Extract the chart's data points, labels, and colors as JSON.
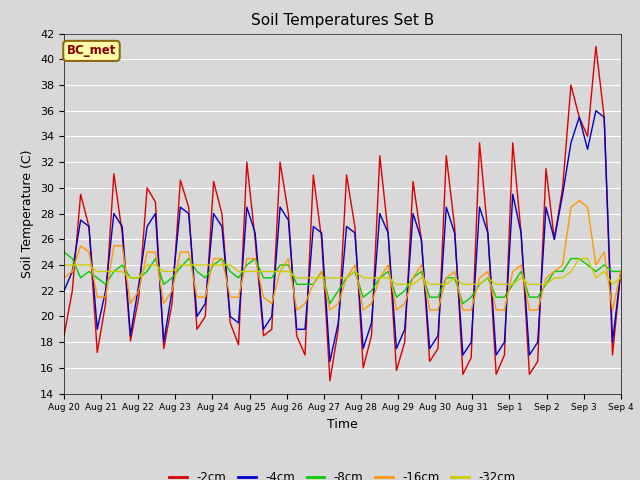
{
  "title": "Soil Temperatures Set B",
  "xlabel": "Time",
  "ylabel": "Soil Temperature (C)",
  "ylim": [
    14,
    42
  ],
  "yticks": [
    14,
    16,
    18,
    20,
    22,
    24,
    26,
    28,
    30,
    32,
    34,
    36,
    38,
    40,
    42
  ],
  "annotation": "BC_met",
  "colors": {
    "-2cm": "#dd0000",
    "-4cm": "#0000cc",
    "-8cm": "#00cc00",
    "-16cm": "#ff9900",
    "-32cm": "#cccc00"
  },
  "legend_order": [
    "-2cm",
    "-4cm",
    "-8cm",
    "-16cm",
    "-32cm"
  ],
  "background_color": "#d8d8d8",
  "x_labels": [
    "Aug 20",
    "Aug 21",
    "Aug 22",
    "Aug 23",
    "Aug 24",
    "Aug 25",
    "Aug 26",
    "Aug 27",
    "Aug 28",
    "Aug 29",
    "Aug 30",
    "Aug 31",
    "Sep 1",
    "Sep 2",
    "Sep 3",
    "Sep 4"
  ],
  "t_2cm": [
    18.5,
    22.0,
    29.5,
    27.0,
    17.2,
    21.0,
    31.1,
    26.5,
    18.1,
    21.5,
    30.0,
    28.9,
    17.5,
    21.0,
    30.6,
    28.5,
    19.0,
    20.0,
    30.5,
    28.0,
    19.5,
    17.8,
    32.0,
    26.0,
    18.5,
    19.0,
    32.0,
    28.0,
    18.5,
    17.0,
    31.0,
    26.0,
    15.0,
    19.0,
    31.0,
    27.0,
    16.0,
    18.5,
    32.5,
    26.5,
    15.8,
    18.0,
    30.5,
    26.0,
    16.5,
    17.5,
    32.5,
    27.0,
    15.5,
    16.8,
    33.5,
    26.5,
    15.5,
    17.0,
    33.5,
    26.5,
    15.5,
    16.5,
    31.5,
    26.0,
    30.0,
    38.0,
    35.5,
    34.0,
    41.0,
    35.5,
    17.0,
    23.5
  ],
  "t_4cm": [
    22.0,
    23.5,
    27.5,
    27.0,
    19.0,
    22.0,
    28.0,
    27.0,
    18.5,
    22.5,
    27.0,
    28.0,
    18.0,
    22.0,
    28.5,
    28.0,
    20.0,
    21.0,
    28.0,
    27.0,
    20.0,
    19.5,
    28.5,
    26.5,
    19.0,
    20.0,
    28.5,
    27.5,
    19.0,
    19.0,
    27.0,
    26.5,
    16.5,
    19.5,
    27.0,
    26.5,
    17.5,
    19.5,
    28.0,
    26.5,
    17.5,
    19.0,
    28.0,
    26.0,
    17.5,
    18.5,
    28.5,
    26.5,
    17.0,
    18.0,
    28.5,
    26.5,
    17.0,
    18.0,
    29.5,
    26.5,
    17.0,
    18.0,
    28.5,
    26.0,
    29.5,
    33.5,
    35.5,
    33.0,
    36.0,
    35.5,
    18.0,
    23.5
  ],
  "t_8cm": [
    25.0,
    24.5,
    23.0,
    23.5,
    23.0,
    22.5,
    23.5,
    24.0,
    23.0,
    23.0,
    23.5,
    24.5,
    22.5,
    23.0,
    23.8,
    24.5,
    23.5,
    23.0,
    24.0,
    24.5,
    23.5,
    23.0,
    24.0,
    24.5,
    23.0,
    23.0,
    24.0,
    24.0,
    22.5,
    22.5,
    22.5,
    23.5,
    21.0,
    22.0,
    23.0,
    23.5,
    21.5,
    22.0,
    23.0,
    23.5,
    21.5,
    22.0,
    23.0,
    23.5,
    21.5,
    21.5,
    23.0,
    23.0,
    21.0,
    21.5,
    22.5,
    23.0,
    21.5,
    21.5,
    22.5,
    23.5,
    21.5,
    21.5,
    22.5,
    23.5,
    23.5,
    24.5,
    24.5,
    24.0,
    23.5,
    24.0,
    23.5,
    23.5
  ],
  "t_16cm": [
    23.0,
    23.5,
    25.5,
    25.0,
    21.5,
    21.5,
    25.5,
    25.5,
    21.0,
    22.0,
    25.0,
    25.0,
    21.0,
    22.0,
    25.0,
    25.0,
    21.5,
    21.5,
    24.5,
    24.5,
    21.5,
    21.5,
    24.5,
    24.5,
    21.5,
    21.0,
    23.5,
    24.5,
    20.5,
    21.0,
    22.5,
    23.5,
    20.5,
    21.0,
    23.0,
    24.0,
    20.5,
    21.0,
    23.0,
    24.0,
    20.5,
    21.0,
    23.0,
    24.0,
    20.5,
    20.5,
    23.0,
    23.5,
    20.5,
    20.5,
    23.0,
    23.5,
    20.5,
    20.5,
    23.5,
    24.0,
    20.5,
    20.5,
    23.0,
    23.5,
    24.0,
    28.5,
    29.0,
    28.5,
    24.0,
    25.0,
    20.5,
    23.5
  ],
  "t_32cm": [
    24.0,
    24.0,
    24.0,
    24.0,
    23.5,
    23.5,
    23.5,
    23.5,
    23.0,
    23.0,
    24.0,
    24.0,
    23.5,
    23.5,
    24.0,
    24.0,
    24.0,
    24.0,
    24.0,
    24.0,
    24.0,
    23.5,
    23.5,
    23.5,
    23.5,
    23.5,
    23.5,
    23.5,
    23.0,
    23.0,
    23.0,
    23.0,
    23.0,
    23.0,
    23.0,
    23.5,
    23.0,
    23.0,
    23.0,
    23.0,
    22.5,
    22.5,
    22.5,
    23.0,
    22.5,
    22.5,
    22.5,
    23.0,
    22.5,
    22.5,
    22.5,
    23.0,
    22.5,
    22.5,
    22.5,
    23.0,
    22.5,
    22.5,
    22.5,
    23.0,
    23.0,
    23.5,
    24.5,
    24.5,
    23.0,
    23.5,
    22.5,
    23.0
  ]
}
